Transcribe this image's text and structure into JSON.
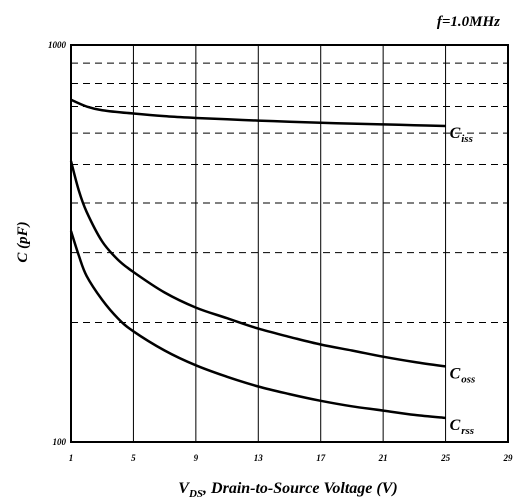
{
  "chart_data": {
    "type": "line",
    "title": "f=1.0MHz",
    "xlabel": {
      "main": "V",
      "sub": "DS",
      "rest": ", Drain-to-Source Voltage (V)"
    },
    "ylabel": "C (pF)",
    "x_scale": "linear",
    "y_scale": "log",
    "xlim": [
      1,
      29
    ],
    "ylim": [
      100,
      1000
    ],
    "x_ticks": [
      1,
      5,
      9,
      13,
      17,
      21,
      25,
      29
    ],
    "y_ticks": [
      100,
      1000
    ],
    "x_tick_labels": [
      "1",
      "5",
      "9",
      "13",
      "17",
      "21",
      "25",
      "29"
    ],
    "y_tick_labels": [
      "100",
      "1000"
    ],
    "grid": {
      "vertical": "solid",
      "horizontal": "dashed"
    },
    "series": [
      {
        "name": {
          "main": "C",
          "sub": "iss"
        },
        "x": [
          1,
          2,
          3,
          5,
          7,
          9,
          11,
          13,
          15,
          17,
          19,
          21,
          23,
          25
        ],
        "y": [
          728,
          700,
          685,
          672,
          662,
          655,
          650,
          645,
          641,
          637,
          634,
          631,
          628,
          625
        ]
      },
      {
        "name": {
          "main": "C",
          "sub": "oss"
        },
        "x": [
          1,
          1.5,
          2,
          3,
          4,
          5,
          7,
          9,
          11,
          13,
          15,
          17,
          19,
          21,
          23,
          25
        ],
        "y": [
          510,
          430,
          380,
          320,
          288,
          268,
          238,
          218,
          205,
          193,
          184,
          176,
          170,
          164,
          159,
          155
        ]
      },
      {
        "name": {
          "main": "C",
          "sub": "rss"
        },
        "x": [
          1,
          1.5,
          2,
          3,
          4,
          5,
          7,
          9,
          11,
          13,
          15,
          17,
          19,
          21,
          23,
          25
        ],
        "y": [
          340,
          295,
          262,
          228,
          205,
          190,
          170,
          156,
          146,
          138,
          132,
          127,
          123,
          120,
          117,
          115
        ]
      }
    ]
  }
}
